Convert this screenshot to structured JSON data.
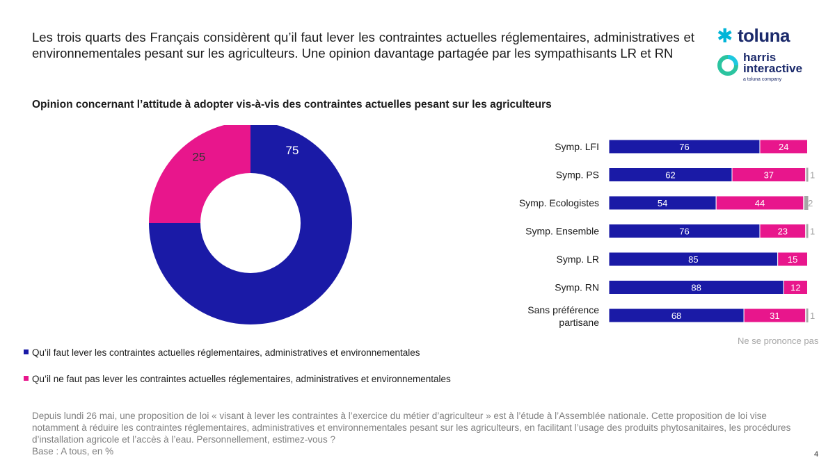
{
  "headline": "Les trois quarts des Français considèrent qu’il faut lever les contraintes actuelles réglementaires, administratives et environnementales pesant sur les agriculteurs. Une opinion davantage partagée par les sympathisants LR et RN",
  "subtitle": "Opinion concernant l’attitude à adopter vis-à-vis des contraintes actuelles pesant sur les agriculteurs",
  "logos": {
    "toluna": "toluna",
    "harris_line1": "harris",
    "harris_line2": "interactive",
    "harris_sub": "a toluna company"
  },
  "colors": {
    "blue": "#1a1aa6",
    "pink": "#e8168c",
    "grey": "#a6a6a6"
  },
  "chart_data": [
    {
      "type": "pie",
      "variant": "donut",
      "labels": [
        "Qu’il faut lever les contraintes actuelles réglementaires, administratives et environnementales",
        "Qu’il ne faut pas lever les contraintes actuelles réglementaires, administratives et environnementales"
      ],
      "values": [
        75,
        25
      ],
      "colors": [
        "#1a1aa6",
        "#e8168c"
      ]
    },
    {
      "type": "bar",
      "orientation": "horizontal",
      "stacked": true,
      "categories": [
        "Symp. LFI",
        "Symp. PS",
        "Symp. Ecologistes",
        "Symp. Ensemble",
        "Symp. LR",
        "Symp. RN",
        "Sans préférence partisane"
      ],
      "series": [
        {
          "name": "Qu’il faut lever",
          "color": "#1a1aa6",
          "values": [
            76,
            62,
            54,
            76,
            85,
            88,
            68
          ]
        },
        {
          "name": "Qu’il ne faut pas lever",
          "color": "#e8168c",
          "values": [
            24,
            37,
            44,
            23,
            15,
            12,
            31
          ]
        },
        {
          "name": "Ne se prononce pas",
          "color": "#a6a6a6",
          "values": [
            null,
            1,
            2,
            1,
            null,
            null,
            1
          ]
        }
      ],
      "xlim": [
        0,
        100
      ]
    }
  ],
  "npp_label": "Ne se prononce pas",
  "legend": [
    {
      "label": "Qu’il faut lever les contraintes actuelles réglementaires, administratives et environnementales",
      "color": "#1a1aa6"
    },
    {
      "label": "Qu’il ne faut pas lever les contraintes actuelles réglementaires, administratives et environnementales",
      "color": "#e8168c"
    }
  ],
  "footnote": {
    "question": "Depuis lundi 26 mai, une proposition de loi « visant à lever les contraintes à l’exercice du métier d’agriculteur » est à l’étude à l’Assemblée nationale. Cette proposition de loi vise notamment à réduire les contraintes réglementaires, administratives et environnementales pesant sur les agriculteurs, en facilitant l’usage des produits phytosanitaires, les procédures d’installation agricole et l’accès à l’eau. Personnellement, estimez-vous ?",
    "base": "Base : A tous, en %"
  },
  "page_number": "4"
}
